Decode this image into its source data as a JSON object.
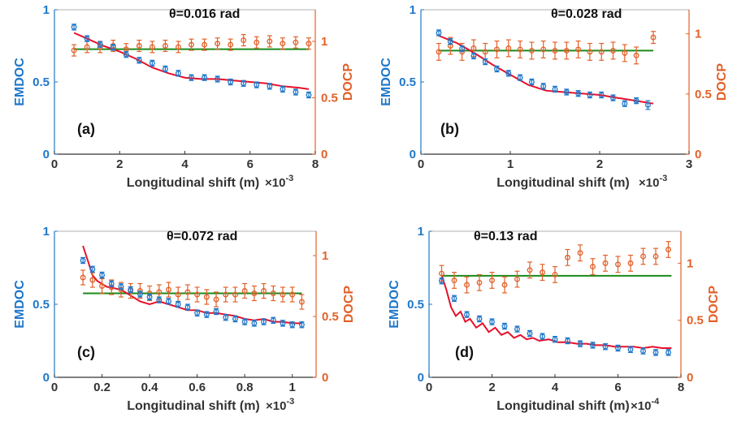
{
  "styles": {
    "emdoc_color": "#1f77c9",
    "docp_color": "#e2612a",
    "fit_color": "#e8102a",
    "const_color": "#1a8a1a",
    "axis_color": "#333333"
  },
  "chart_data": [
    {
      "type": "scatter",
      "panel_label": "(a)",
      "title": "θ=0.016 rad",
      "xlabel": "Longitudinal shift  (m)",
      "x_multiplier": "×10",
      "x_exponent": "-3",
      "ylabel_left": "EMDOC",
      "ylabel_right": "DOCP",
      "xlim": [
        0,
        8
      ],
      "ylim_left": [
        0,
        1
      ],
      "ylim_right": [
        0,
        1.28
      ],
      "xticks": [
        "0",
        "2",
        "4",
        "6",
        "8"
      ],
      "yticks_left": [
        "0",
        "0.5",
        "1"
      ],
      "yticks_right": [
        "0",
        "0.5",
        "1"
      ],
      "emdoc": {
        "x": [
          0.6,
          1.0,
          1.4,
          1.8,
          2.2,
          2.6,
          3.0,
          3.4,
          3.8,
          4.2,
          4.6,
          5.0,
          5.4,
          5.8,
          6.2,
          6.6,
          7.0,
          7.4,
          7.8
        ],
        "y": [
          0.88,
          0.8,
          0.76,
          0.74,
          0.69,
          0.65,
          0.63,
          0.59,
          0.56,
          0.53,
          0.53,
          0.52,
          0.5,
          0.49,
          0.48,
          0.47,
          0.45,
          0.43,
          0.41
        ],
        "err": [
          0.02,
          0.02,
          0.02,
          0.02,
          0.02,
          0.02,
          0.02,
          0.02,
          0.02,
          0.02,
          0.02,
          0.02,
          0.02,
          0.02,
          0.02,
          0.02,
          0.02,
          0.02,
          0.02
        ]
      },
      "docp": {
        "x": [
          0.6,
          1.0,
          1.4,
          1.8,
          2.2,
          2.6,
          3.0,
          3.4,
          3.8,
          4.2,
          4.6,
          5.0,
          5.4,
          5.8,
          6.2,
          6.6,
          7.0,
          7.4,
          7.8
        ],
        "y": [
          0.92,
          0.95,
          0.95,
          0.96,
          0.93,
          0.96,
          0.95,
          0.96,
          0.95,
          0.97,
          0.97,
          0.98,
          0.97,
          1.01,
          0.99,
          1.0,
          0.98,
          0.99,
          0.98
        ],
        "err": [
          0.05,
          0.05,
          0.05,
          0.05,
          0.05,
          0.05,
          0.05,
          0.05,
          0.05,
          0.05,
          0.05,
          0.05,
          0.05,
          0.05,
          0.05,
          0.05,
          0.05,
          0.05,
          0.05
        ]
      },
      "fit": {
        "x": [
          0.6,
          1.0,
          1.5,
          2.0,
          2.5,
          3.0,
          3.5,
          4.0,
          4.5,
          5.0,
          5.5,
          6.0,
          6.5,
          7.0,
          7.5,
          7.8
        ],
        "y": [
          0.84,
          0.8,
          0.75,
          0.71,
          0.66,
          0.6,
          0.56,
          0.53,
          0.52,
          0.52,
          0.51,
          0.5,
          0.49,
          0.47,
          0.46,
          0.45
        ]
      },
      "const": {
        "x": [
          0.6,
          7.8
        ],
        "y": [
          0.93,
          0.93
        ]
      }
    },
    {
      "type": "scatter",
      "panel_label": "(b)",
      "title": "θ=0.028 rad",
      "xlabel": "Longitudinal shift  (m)",
      "x_multiplier": "×10",
      "x_exponent": "-3",
      "ylabel_left": "EMDOC",
      "ylabel_right": "DOCP",
      "xlim": [
        0,
        3
      ],
      "ylim_left": [
        0,
        1
      ],
      "ylim_right": [
        0,
        1.2
      ],
      "xticks": [
        "0",
        "1",
        "2",
        "3"
      ],
      "yticks_left": [
        "0",
        "0.5",
        "1"
      ],
      "yticks_right": [
        "0",
        "0.5",
        "1"
      ],
      "emdoc": {
        "x": [
          0.2,
          0.33,
          0.46,
          0.59,
          0.72,
          0.85,
          0.98,
          1.11,
          1.24,
          1.37,
          1.5,
          1.63,
          1.76,
          1.89,
          2.02,
          2.15,
          2.28,
          2.41,
          2.54
        ],
        "y": [
          0.84,
          0.78,
          0.73,
          0.68,
          0.64,
          0.59,
          0.56,
          0.53,
          0.5,
          0.47,
          0.45,
          0.43,
          0.42,
          0.41,
          0.41,
          0.39,
          0.35,
          0.37,
          0.34
        ],
        "err": [
          0.02,
          0.02,
          0.02,
          0.02,
          0.02,
          0.02,
          0.02,
          0.02,
          0.02,
          0.02,
          0.02,
          0.02,
          0.02,
          0.02,
          0.02,
          0.02,
          0.02,
          0.02,
          0.03
        ]
      },
      "docp": {
        "x": [
          0.2,
          0.33,
          0.46,
          0.59,
          0.72,
          0.85,
          0.98,
          1.11,
          1.24,
          1.37,
          1.5,
          1.63,
          1.76,
          1.89,
          2.02,
          2.15,
          2.28,
          2.41,
          2.6
        ],
        "y": [
          0.85,
          0.9,
          0.85,
          0.88,
          0.85,
          0.87,
          0.88,
          0.87,
          0.86,
          0.87,
          0.86,
          0.86,
          0.87,
          0.85,
          0.85,
          0.86,
          0.84,
          0.82,
          0.97
        ],
        "err": [
          0.07,
          0.07,
          0.07,
          0.07,
          0.07,
          0.07,
          0.07,
          0.07,
          0.07,
          0.07,
          0.07,
          0.07,
          0.07,
          0.07,
          0.07,
          0.07,
          0.07,
          0.07,
          0.05
        ]
      },
      "fit": {
        "x": [
          0.2,
          0.4,
          0.6,
          0.8,
          1.0,
          1.2,
          1.4,
          1.6,
          1.8,
          2.0,
          2.2,
          2.4,
          2.6
        ],
        "y": [
          0.82,
          0.77,
          0.7,
          0.62,
          0.55,
          0.48,
          0.44,
          0.43,
          0.42,
          0.41,
          0.39,
          0.37,
          0.35
        ]
      },
      "const": {
        "x": [
          0.2,
          2.6
        ],
        "y": [
          0.86,
          0.86
        ]
      }
    },
    {
      "type": "scatter",
      "panel_label": "(c)",
      "title": "θ=0.072 rad",
      "xlabel": "Longitudinal shift  (m)",
      "x_multiplier": "×10",
      "x_exponent": "-3",
      "ylabel_left": "EMDOC",
      "ylabel_right": "DOCP",
      "xlim": [
        0,
        1.1
      ],
      "ylim_left": [
        0,
        1
      ],
      "ylim_right": [
        0,
        1.2
      ],
      "xticks": [
        "0",
        "0.2",
        "0.4",
        "0.6",
        "0.8",
        "1"
      ],
      "yticks_left": [
        "0",
        "0.5",
        "1"
      ],
      "yticks_right": [
        "0",
        "0.5",
        "1"
      ],
      "emdoc": {
        "x": [
          0.12,
          0.16,
          0.2,
          0.24,
          0.28,
          0.32,
          0.36,
          0.4,
          0.44,
          0.48,
          0.52,
          0.56,
          0.6,
          0.64,
          0.68,
          0.72,
          0.76,
          0.8,
          0.84,
          0.88,
          0.92,
          0.96,
          1.0,
          1.04
        ],
        "y": [
          0.8,
          0.74,
          0.7,
          0.64,
          0.62,
          0.6,
          0.57,
          0.55,
          0.53,
          0.52,
          0.5,
          0.48,
          0.44,
          0.43,
          0.45,
          0.41,
          0.4,
          0.38,
          0.37,
          0.38,
          0.39,
          0.37,
          0.36,
          0.36
        ],
        "err": [
          0.02,
          0.02,
          0.02,
          0.02,
          0.02,
          0.02,
          0.02,
          0.02,
          0.02,
          0.02,
          0.02,
          0.02,
          0.02,
          0.02,
          0.02,
          0.02,
          0.02,
          0.02,
          0.02,
          0.02,
          0.02,
          0.02,
          0.02,
          0.02
        ]
      },
      "docp": {
        "x": [
          0.12,
          0.16,
          0.2,
          0.24,
          0.28,
          0.32,
          0.36,
          0.4,
          0.44,
          0.48,
          0.52,
          0.56,
          0.6,
          0.64,
          0.68,
          0.72,
          0.76,
          0.8,
          0.84,
          0.88,
          0.92,
          0.96,
          1.0,
          1.04
        ],
        "y": [
          0.82,
          0.8,
          0.75,
          0.74,
          0.72,
          0.71,
          0.71,
          0.69,
          0.7,
          0.72,
          0.68,
          0.7,
          0.68,
          0.66,
          0.64,
          0.68,
          0.68,
          0.71,
          0.69,
          0.71,
          0.69,
          0.68,
          0.68,
          0.62
        ],
        "err": [
          0.06,
          0.06,
          0.06,
          0.06,
          0.06,
          0.06,
          0.06,
          0.06,
          0.06,
          0.06,
          0.06,
          0.06,
          0.06,
          0.06,
          0.06,
          0.06,
          0.06,
          0.06,
          0.06,
          0.06,
          0.06,
          0.06,
          0.06,
          0.06
        ]
      },
      "fit": {
        "x": [
          0.12,
          0.14,
          0.16,
          0.18,
          0.2,
          0.22,
          0.25,
          0.28,
          0.32,
          0.36,
          0.4,
          0.44,
          0.48,
          0.52,
          0.56,
          0.6,
          0.64,
          0.68,
          0.72,
          0.76,
          0.8,
          0.84,
          0.88,
          0.92,
          0.96,
          1.0,
          1.04
        ],
        "y": [
          0.9,
          0.8,
          0.7,
          0.66,
          0.64,
          0.62,
          0.61,
          0.6,
          0.56,
          0.52,
          0.5,
          0.52,
          0.5,
          0.48,
          0.46,
          0.46,
          0.44,
          0.44,
          0.43,
          0.42,
          0.4,
          0.39,
          0.4,
          0.38,
          0.38,
          0.37,
          0.37
        ]
      },
      "const": {
        "x": [
          0.12,
          1.04
        ],
        "y": [
          0.69,
          0.69
        ]
      }
    },
    {
      "type": "scatter",
      "panel_label": "(d)",
      "title": "θ=0.13 rad",
      "xlabel": "Longitudinal shift  (m)",
      "x_multiplier": "×10",
      "x_exponent": "-4",
      "ylabel_left": "EMDOC",
      "ylabel_right": "DOCP",
      "xlim": [
        0,
        8
      ],
      "ylim_left": [
        0,
        1
      ],
      "ylim_right": [
        0,
        1.28
      ],
      "xticks": [
        "0",
        "2",
        "4",
        "6",
        "8"
      ],
      "yticks_left": [
        "0",
        "0.5",
        "1"
      ],
      "yticks_right": [
        "0",
        "0.5",
        "1"
      ],
      "emdoc": {
        "x": [
          0.4,
          0.8,
          1.2,
          1.6,
          2.0,
          2.4,
          2.8,
          3.2,
          3.6,
          4.0,
          4.4,
          4.8,
          5.2,
          5.6,
          6.0,
          6.4,
          6.8,
          7.2,
          7.6
        ],
        "y": [
          0.66,
          0.54,
          0.43,
          0.4,
          0.38,
          0.35,
          0.33,
          0.3,
          0.28,
          0.26,
          0.25,
          0.23,
          0.22,
          0.21,
          0.2,
          0.19,
          0.18,
          0.17,
          0.17
        ],
        "err": [
          0.02,
          0.02,
          0.02,
          0.02,
          0.02,
          0.02,
          0.02,
          0.02,
          0.02,
          0.02,
          0.02,
          0.02,
          0.02,
          0.02,
          0.02,
          0.02,
          0.02,
          0.02,
          0.02
        ]
      },
      "docp": {
        "x": [
          0.4,
          0.8,
          1.2,
          1.6,
          2.0,
          2.4,
          2.8,
          3.2,
          3.6,
          4.0,
          4.4,
          4.8,
          5.2,
          5.6,
          6.0,
          6.4,
          6.8,
          7.2,
          7.6
        ],
        "y": [
          0.91,
          0.85,
          0.81,
          0.83,
          0.85,
          0.81,
          0.86,
          0.94,
          0.92,
          0.9,
          1.05,
          1.09,
          0.97,
          1.0,
          0.99,
          1.0,
          1.06,
          1.06,
          1.12
        ],
        "err": [
          0.07,
          0.07,
          0.07,
          0.07,
          0.07,
          0.07,
          0.07,
          0.07,
          0.07,
          0.07,
          0.07,
          0.07,
          0.07,
          0.07,
          0.07,
          0.07,
          0.07,
          0.07,
          0.07
        ]
      },
      "fit": {
        "x": [
          0.4,
          0.55,
          0.7,
          0.85,
          1.0,
          1.15,
          1.3,
          1.5,
          1.7,
          1.9,
          2.1,
          2.3,
          2.5,
          2.7,
          2.9,
          3.1,
          3.3,
          3.5,
          3.8,
          4.1,
          4.4,
          4.7,
          5.0,
          5.3,
          5.6,
          5.9,
          6.2,
          6.5,
          6.8,
          7.1,
          7.4,
          7.7
        ],
        "y": [
          0.7,
          0.6,
          0.48,
          0.42,
          0.45,
          0.38,
          0.4,
          0.34,
          0.37,
          0.31,
          0.34,
          0.29,
          0.31,
          0.27,
          0.29,
          0.26,
          0.27,
          0.25,
          0.26,
          0.24,
          0.24,
          0.23,
          0.23,
          0.22,
          0.22,
          0.21,
          0.21,
          0.21,
          0.2,
          0.21,
          0.2,
          0.2
        ]
      },
      "const": {
        "x": [
          0.4,
          7.7
        ],
        "y": [
          0.89,
          0.89
        ]
      }
    }
  ]
}
